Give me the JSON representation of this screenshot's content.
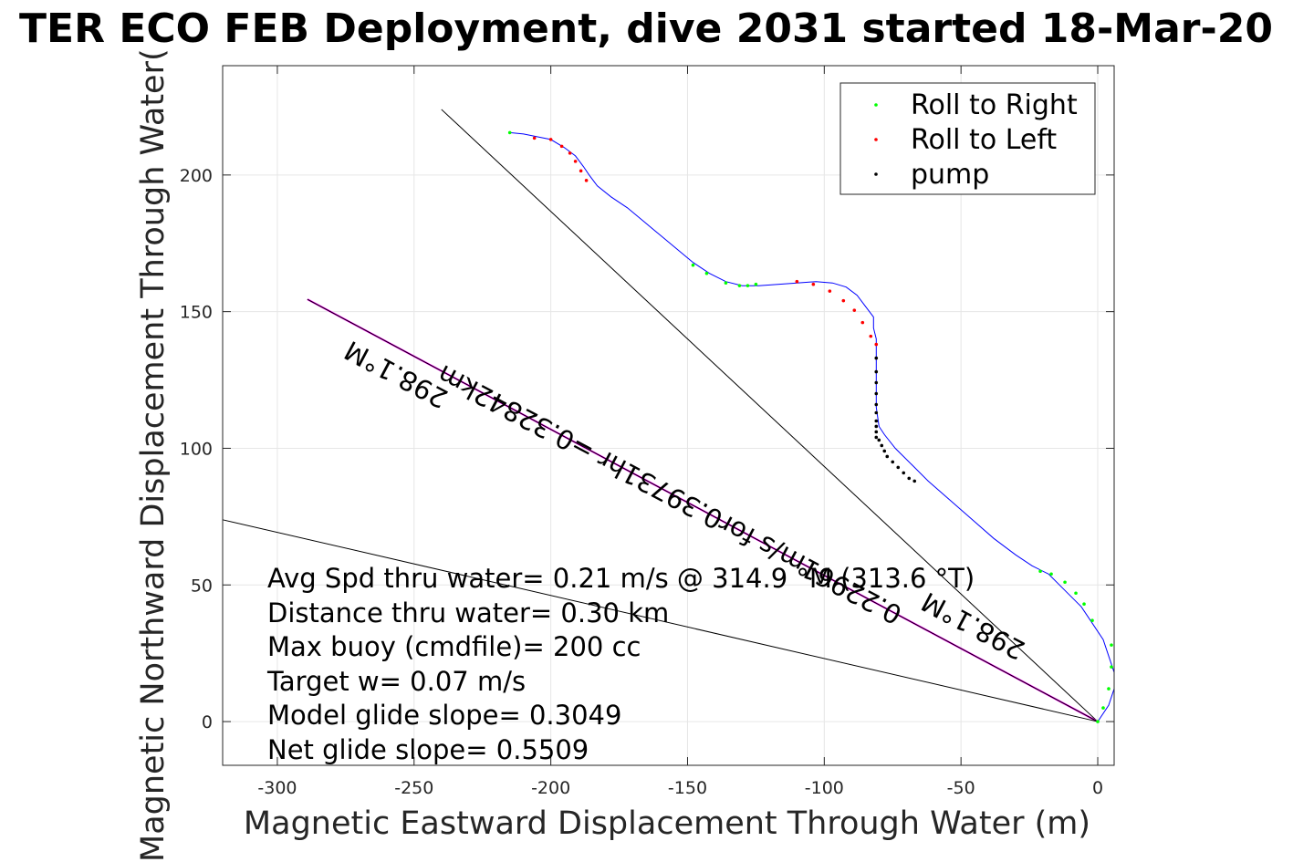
{
  "chart_data": {
    "type": "scatter",
    "title": "TER ECO FEB Deployment, dive 2031 started 18-Mar-20",
    "xlabel": "Magnetic Eastward Displacement Through Water (m)",
    "ylabel": "Magnetic Northward Displacement Through Water(",
    "xlim": [
      -320,
      6
    ],
    "ylim": [
      -16,
      240
    ],
    "xticks": [
      -300,
      -250,
      -200,
      -150,
      -100,
      -50,
      0
    ],
    "yticks": [
      0,
      50,
      100,
      150,
      200
    ],
    "grid": true,
    "legend_position": "top-right",
    "legend": [
      {
        "label": "Roll to Right",
        "color": "#00ff00"
      },
      {
        "label": "Roll to Left",
        "color": "#ff0000"
      },
      {
        "label": "pump",
        "color": "#000000"
      }
    ],
    "track": {
      "name": "glider track",
      "color": "#0000ff",
      "x": [
        0,
        4,
        6,
        6,
        4,
        2,
        -2,
        -6,
        -12,
        -18,
        -24,
        -30,
        -38,
        -46,
        -54,
        -62,
        -68,
        -74,
        -78,
        -80,
        -81,
        -81,
        -81,
        -81,
        -82,
        -82,
        -85,
        -88,
        -92,
        -97,
        -103,
        -110,
        -117,
        -124,
        -130,
        -136,
        -142,
        -148,
        -154,
        -160,
        -166,
        -172,
        -178,
        -183,
        -186,
        -188,
        -191,
        -195,
        -200,
        -205,
        -210,
        -215
      ],
      "y": [
        0,
        6,
        12,
        18,
        24,
        30,
        36,
        42,
        48,
        54,
        57,
        61,
        67,
        74,
        81,
        88,
        94,
        100,
        105,
        108,
        115,
        125,
        135,
        140,
        144,
        148,
        152,
        156,
        159,
        160.5,
        161,
        160.5,
        160,
        159.5,
        159.5,
        161,
        164,
        168,
        173,
        178,
        183,
        188,
        192,
        196,
        200,
        203,
        207,
        210,
        213,
        214,
        215,
        215.5
      ]
    },
    "roll_right_points": {
      "x": [
        -215,
        -148,
        -143,
        -136,
        -131,
        -128,
        -125,
        0,
        2,
        4,
        5,
        5,
        -2,
        -5,
        -8,
        -12,
        -17,
        -21
      ],
      "y": [
        215.5,
        167,
        164,
        160.5,
        159.5,
        159.5,
        160,
        0,
        5,
        12,
        20,
        28,
        37,
        43,
        47,
        51,
        54,
        55
      ]
    },
    "roll_left_points": {
      "x": [
        -206,
        -200,
        -196,
        -193,
        -191,
        -189,
        -187,
        -110,
        -104,
        -98,
        -93,
        -89,
        -86,
        -83,
        -81
      ],
      "y": [
        213.5,
        213,
        210.5,
        208,
        205,
        201.5,
        198,
        161,
        160,
        157.5,
        154,
        150.5,
        146,
        141,
        138
      ]
    },
    "pump_points": {
      "x": [
        -81,
        -81,
        -81,
        -81,
        -81,
        -81,
        -81,
        -81,
        -81,
        -81,
        -80,
        -79,
        -78,
        -77,
        -75,
        -73,
        -71,
        -69,
        -67
      ],
      "y": [
        133,
        128,
        124,
        120,
        116,
        113,
        110,
        108,
        106,
        104,
        103,
        101,
        99,
        97,
        95,
        93,
        91,
        89,
        88
      ]
    },
    "reference_lines": [
      {
        "x": [
          0,
          -240
        ],
        "y": [
          0,
          224
        ],
        "color": "#000000"
      },
      {
        "x": [
          0,
          -289
        ],
        "y": [
          0,
          154.5
        ],
        "color": "#ff00ff"
      },
      {
        "x": [
          0,
          -289
        ],
        "y": [
          0,
          154.5
        ],
        "color": "#000000"
      },
      {
        "x": [
          0,
          -325
        ],
        "y": [
          0,
          75
        ],
        "color": "#000000"
      }
    ],
    "annotations": [
      {
        "text": "298.1°M",
        "x": -255,
        "y": 130,
        "rotation": 208
      },
      {
        "text": "0.22961m/s for0.39731hr =0.32842km",
        "x": -155,
        "y": 86,
        "rotation": 208
      },
      {
        "text": "298.1°M",
        "x": -44,
        "y": 38,
        "rotation": 208
      }
    ],
    "stats": [
      "Avg Spd thru water=  0.21 m/s @ 314.9 °M (313.6 °T)",
      "Distance thru water=  0.30 km",
      "Max buoy (cmdfile)= 200 cc",
      "Target w= 0.07 m/s",
      "Model glide slope= 0.3049",
      "Net glide slope= 0.5509"
    ]
  }
}
